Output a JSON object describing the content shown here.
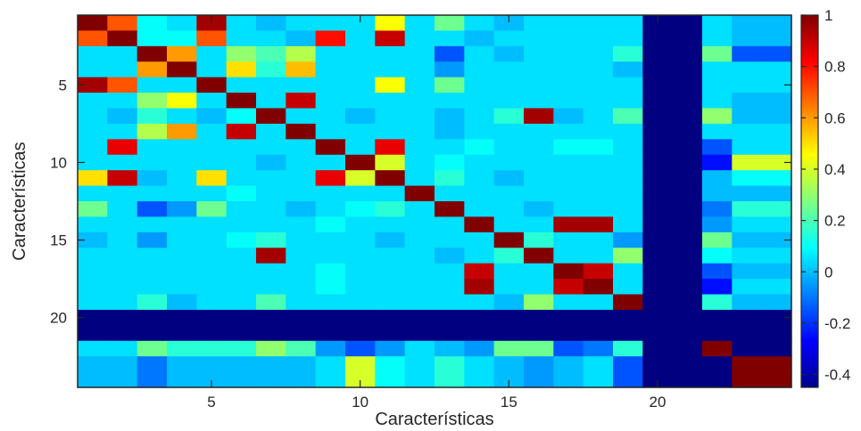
{
  "chart_data": {
    "type": "heatmap",
    "xlabel": "Características",
    "ylabel": "Características",
    "x_range": [
      1,
      24
    ],
    "y_range": [
      1,
      24
    ],
    "y_axis_reversed": true,
    "x_ticks": [
      5,
      10,
      15,
      20
    ],
    "y_ticks": [
      5,
      10,
      15,
      20
    ],
    "colormap": "jet",
    "clim": [
      -0.45,
      1.0
    ],
    "colorbar": {
      "location": "right",
      "ticks": [
        1,
        0.8,
        0.6,
        0.4,
        0.2,
        0,
        -0.2,
        -0.4
      ],
      "tick_labels": [
        "1",
        "0.8",
        "0.6",
        "0.4",
        "0.2",
        "0",
        "-0.2",
        "-0.4"
      ]
    },
    "grid": false,
    "matrix": [
      [
        1.0,
        0.7,
        0.1,
        0.05,
        0.95,
        0.05,
        0.0,
        0.05,
        0.05,
        0.05,
        0.45,
        0.05,
        0.25,
        0.05,
        0.0,
        0.05,
        0.05,
        0.05,
        0.05,
        -0.45,
        -0.45,
        0.05,
        0.0,
        0.0
      ],
      [
        0.7,
        1.0,
        0.1,
        0.1,
        0.7,
        0.05,
        0.05,
        0.0,
        0.8,
        0.05,
        0.9,
        0.05,
        0.05,
        0.0,
        0.05,
        0.05,
        0.05,
        0.05,
        0.05,
        -0.45,
        -0.45,
        0.05,
        0.0,
        0.0
      ],
      [
        0.05,
        0.05,
        1.0,
        0.6,
        0.05,
        0.3,
        0.2,
        0.35,
        0.05,
        0.05,
        0.05,
        0.05,
        -0.15,
        0.05,
        0.0,
        0.05,
        0.05,
        0.05,
        0.15,
        -0.45,
        -0.45,
        0.25,
        -0.15,
        -0.15
      ],
      [
        0.05,
        0.05,
        0.6,
        1.0,
        0.05,
        0.5,
        0.15,
        0.55,
        0.05,
        0.05,
        0.05,
        0.05,
        -0.05,
        0.05,
        0.05,
        0.05,
        0.05,
        0.05,
        0.0,
        -0.45,
        -0.45,
        0.05,
        0.05,
        0.05
      ],
      [
        0.95,
        0.7,
        0.05,
        0.05,
        1.0,
        0.05,
        0.05,
        0.05,
        0.05,
        0.05,
        0.45,
        0.05,
        0.25,
        0.05,
        0.05,
        0.05,
        0.05,
        0.05,
        0.05,
        -0.45,
        -0.45,
        0.05,
        0.05,
        0.05
      ],
      [
        0.05,
        0.05,
        0.3,
        0.45,
        0.05,
        1.0,
        0.05,
        0.9,
        0.05,
        0.05,
        0.05,
        0.05,
        0.05,
        0.05,
        0.05,
        0.05,
        0.05,
        0.05,
        0.05,
        -0.45,
        -0.45,
        0.05,
        0.0,
        0.0
      ],
      [
        0.05,
        0.0,
        0.15,
        0.05,
        0.0,
        0.1,
        1.0,
        0.05,
        0.05,
        0.0,
        0.05,
        0.05,
        0.0,
        0.05,
        0.15,
        0.95,
        0.0,
        0.05,
        0.2,
        -0.45,
        -0.45,
        0.3,
        0.0,
        0.0
      ],
      [
        0.05,
        0.05,
        0.35,
        0.6,
        0.05,
        0.9,
        0.05,
        1.0,
        0.05,
        0.05,
        0.05,
        0.05,
        0.0,
        0.05,
        0.05,
        0.05,
        0.05,
        0.05,
        0.05,
        -0.45,
        -0.45,
        0.05,
        0.05,
        0.05
      ],
      [
        0.05,
        0.85,
        0.05,
        0.05,
        0.05,
        0.05,
        0.05,
        0.05,
        1.0,
        0.05,
        0.85,
        0.05,
        0.05,
        0.1,
        0.05,
        0.05,
        0.1,
        0.1,
        0.05,
        -0.45,
        -0.45,
        -0.15,
        0.05,
        0.05
      ],
      [
        0.05,
        0.05,
        0.05,
        0.05,
        0.05,
        0.05,
        0.0,
        0.05,
        0.05,
        1.0,
        0.4,
        0.05,
        0.1,
        0.05,
        0.05,
        0.05,
        0.05,
        0.05,
        0.05,
        -0.45,
        -0.45,
        -0.25,
        0.4,
        0.4
      ],
      [
        0.5,
        0.9,
        0.0,
        0.05,
        0.5,
        0.05,
        0.05,
        0.05,
        0.85,
        0.4,
        1.0,
        0.05,
        0.15,
        0.05,
        0.0,
        0.05,
        0.05,
        0.05,
        0.05,
        -0.45,
        -0.45,
        0.0,
        0.1,
        0.1
      ],
      [
        0.05,
        0.05,
        0.05,
        0.05,
        0.05,
        0.1,
        0.05,
        0.05,
        0.05,
        0.05,
        0.05,
        1.0,
        0.05,
        0.05,
        0.05,
        0.05,
        0.05,
        0.05,
        0.05,
        -0.45,
        -0.45,
        0.0,
        0.0,
        0.0
      ],
      [
        0.25,
        0.05,
        -0.15,
        -0.05,
        0.25,
        0.05,
        0.05,
        0.0,
        0.05,
        0.1,
        0.15,
        0.05,
        1.0,
        0.05,
        0.05,
        0.0,
        0.05,
        0.05,
        0.05,
        -0.45,
        -0.45,
        -0.1,
        0.15,
        0.15
      ],
      [
        0.05,
        0.05,
        0.05,
        0.05,
        0.05,
        0.05,
        0.05,
        0.05,
        0.1,
        0.05,
        0.05,
        0.05,
        0.05,
        1.0,
        0.05,
        0.05,
        0.95,
        0.95,
        0.05,
        -0.45,
        -0.45,
        -0.05,
        0.05,
        0.05
      ],
      [
        0.0,
        0.05,
        -0.05,
        0.05,
        0.05,
        0.1,
        0.15,
        0.05,
        0.05,
        0.05,
        0.0,
        0.05,
        0.05,
        0.05,
        1.0,
        0.15,
        0.05,
        0.05,
        -0.05,
        -0.45,
        -0.45,
        0.25,
        0.0,
        0.0
      ],
      [
        0.05,
        0.05,
        0.05,
        0.05,
        0.05,
        0.05,
        0.95,
        0.05,
        0.05,
        0.05,
        0.05,
        0.05,
        0.0,
        0.05,
        0.15,
        1.0,
        0.05,
        0.05,
        0.3,
        -0.45,
        -0.45,
        0.1,
        0.05,
        0.05
      ],
      [
        0.05,
        0.05,
        0.05,
        0.05,
        0.05,
        0.05,
        0.05,
        0.05,
        0.1,
        0.05,
        0.05,
        0.05,
        0.05,
        0.9,
        0.05,
        0.05,
        1.0,
        0.9,
        0.05,
        -0.45,
        -0.45,
        -0.15,
        0.0,
        0.0
      ],
      [
        0.05,
        0.05,
        0.05,
        0.05,
        0.05,
        0.05,
        0.05,
        0.05,
        0.1,
        0.05,
        0.05,
        0.05,
        0.05,
        0.95,
        0.05,
        0.05,
        0.9,
        1.0,
        0.05,
        -0.45,
        -0.45,
        -0.25,
        0.05,
        0.05
      ],
      [
        0.05,
        0.05,
        0.15,
        0.0,
        0.05,
        0.05,
        0.2,
        0.05,
        0.05,
        0.05,
        0.05,
        0.05,
        0.05,
        0.05,
        0.0,
        0.3,
        0.05,
        0.05,
        1.0,
        -0.45,
        -0.45,
        0.15,
        0.0,
        0.0
      ],
      [
        -0.45,
        -0.45,
        -0.45,
        -0.45,
        -0.45,
        -0.45,
        -0.45,
        -0.45,
        -0.45,
        -0.45,
        -0.45,
        -0.45,
        -0.45,
        -0.45,
        -0.45,
        -0.45,
        -0.45,
        -0.45,
        -0.45,
        -0.45,
        -0.45,
        -0.45,
        -0.45,
        -0.45
      ],
      [
        -0.45,
        -0.45,
        -0.45,
        -0.45,
        -0.45,
        -0.45,
        -0.45,
        -0.45,
        -0.45,
        -0.45,
        -0.45,
        -0.45,
        -0.45,
        -0.45,
        -0.45,
        -0.45,
        -0.45,
        -0.45,
        -0.45,
        -0.45,
        -0.45,
        -0.45,
        -0.45,
        -0.45
      ],
      [
        0.05,
        0.05,
        0.25,
        0.15,
        0.15,
        0.15,
        0.3,
        0.2,
        -0.05,
        -0.15,
        -0.05,
        0.05,
        0.0,
        -0.05,
        0.25,
        0.25,
        -0.15,
        -0.1,
        0.15,
        -0.45,
        -0.45,
        1.0,
        -0.45,
        -0.45
      ],
      [
        0.0,
        0.0,
        -0.1,
        0.0,
        0.0,
        0.0,
        0.0,
        0.0,
        0.05,
        0.4,
        0.1,
        0.05,
        0.15,
        0.05,
        0.0,
        -0.05,
        0.0,
        0.05,
        -0.15,
        -0.45,
        -0.45,
        -0.45,
        1.0,
        1.0
      ],
      [
        0.0,
        0.0,
        -0.1,
        0.0,
        0.0,
        0.0,
        0.0,
        0.0,
        0.05,
        0.4,
        0.1,
        0.05,
        0.15,
        0.05,
        0.0,
        -0.05,
        0.0,
        0.05,
        -0.15,
        -0.45,
        -0.45,
        -0.45,
        1.0,
        1.0
      ]
    ]
  }
}
